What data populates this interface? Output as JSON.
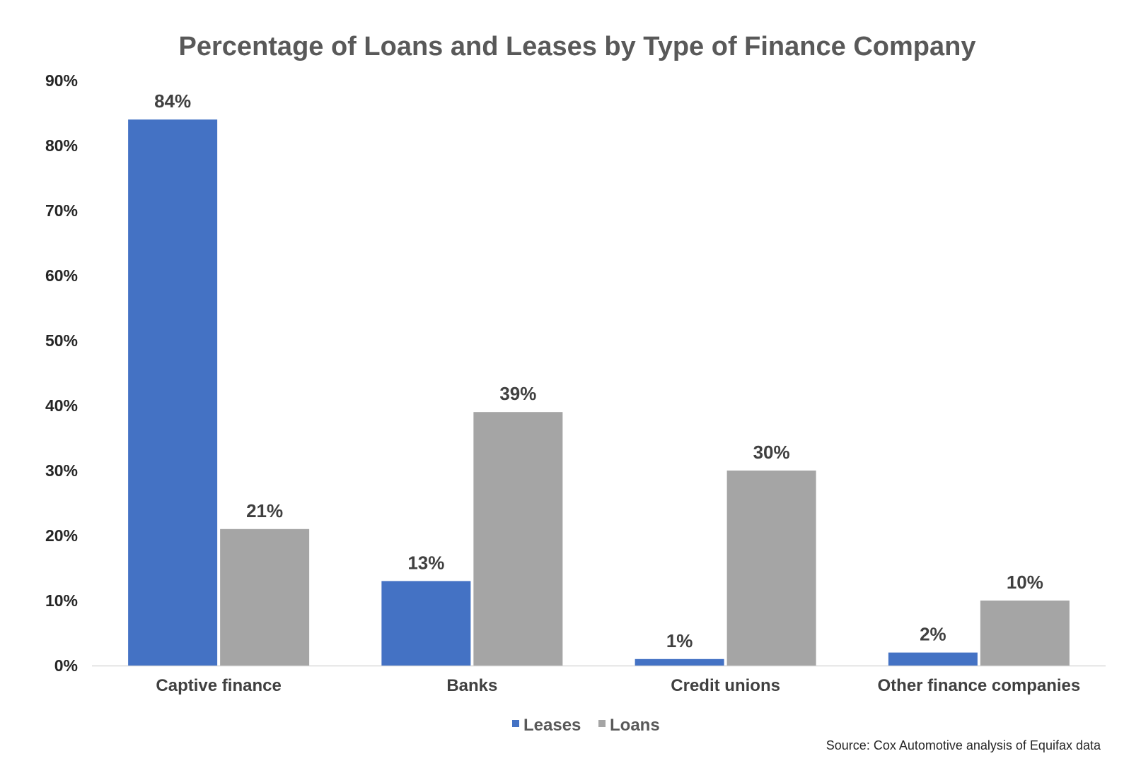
{
  "chart_data": {
    "type": "bar",
    "title": "Percentage of Loans and Leases by Type of Finance Company",
    "categories": [
      "Captive finance",
      "Banks",
      "Credit unions",
      "Other finance companies"
    ],
    "series": [
      {
        "name": "Leases",
        "values": [
          84,
          13,
          1,
          2
        ],
        "labels": [
          "84%",
          "13%",
          "1%",
          "2%"
        ],
        "color": "#4472C4"
      },
      {
        "name": "Loans",
        "values": [
          21,
          39,
          30,
          10
        ],
        "labels": [
          "21%",
          "39%",
          "30%",
          "10%"
        ],
        "color": "#A5A5A5"
      }
    ],
    "ylim": [
      0,
      90
    ],
    "yticks": [
      0,
      10,
      20,
      30,
      40,
      50,
      60,
      70,
      80,
      90
    ],
    "ytick_labels": [
      "0%",
      "10%",
      "20%",
      "30%",
      "40%",
      "50%",
      "60%",
      "70%",
      "80%",
      "90%"
    ],
    "xlabel": "",
    "ylabel": "",
    "grid": false,
    "legend_position": "bottom",
    "source": "Source: Cox Automotive analysis of Equifax data",
    "axis_color": "#D9D9D9"
  }
}
